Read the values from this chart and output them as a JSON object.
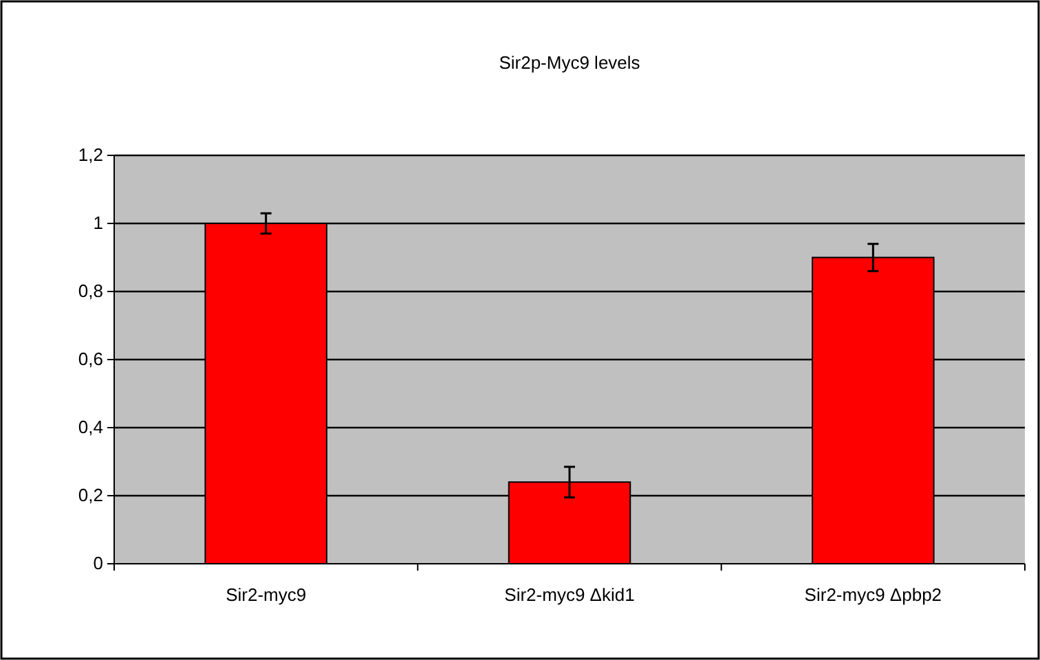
{
  "chart_data": {
    "type": "bar",
    "title": "Sir2p-Myc9 levels",
    "categories": [
      "Sir2-myc9",
      "Sir2-myc9 Δkid1",
      "Sir2-myc9 Δpbp2"
    ],
    "values": [
      1.0,
      0.24,
      0.9
    ],
    "errors": [
      0.03,
      0.045,
      0.04
    ],
    "color": "#ff0000",
    "ylim": [
      0,
      1.2
    ],
    "yticks": [
      0,
      {
        "value": 0.2,
        "label": "0,2"
      },
      {
        "value": 0.4,
        "label": "0,4"
      },
      {
        "value": 0.6,
        "label": "0,6"
      },
      {
        "value": 0.8,
        "label": "0,8"
      },
      1,
      {
        "value": 1.2,
        "label": "1,2"
      }
    ],
    "grid": "y"
  }
}
